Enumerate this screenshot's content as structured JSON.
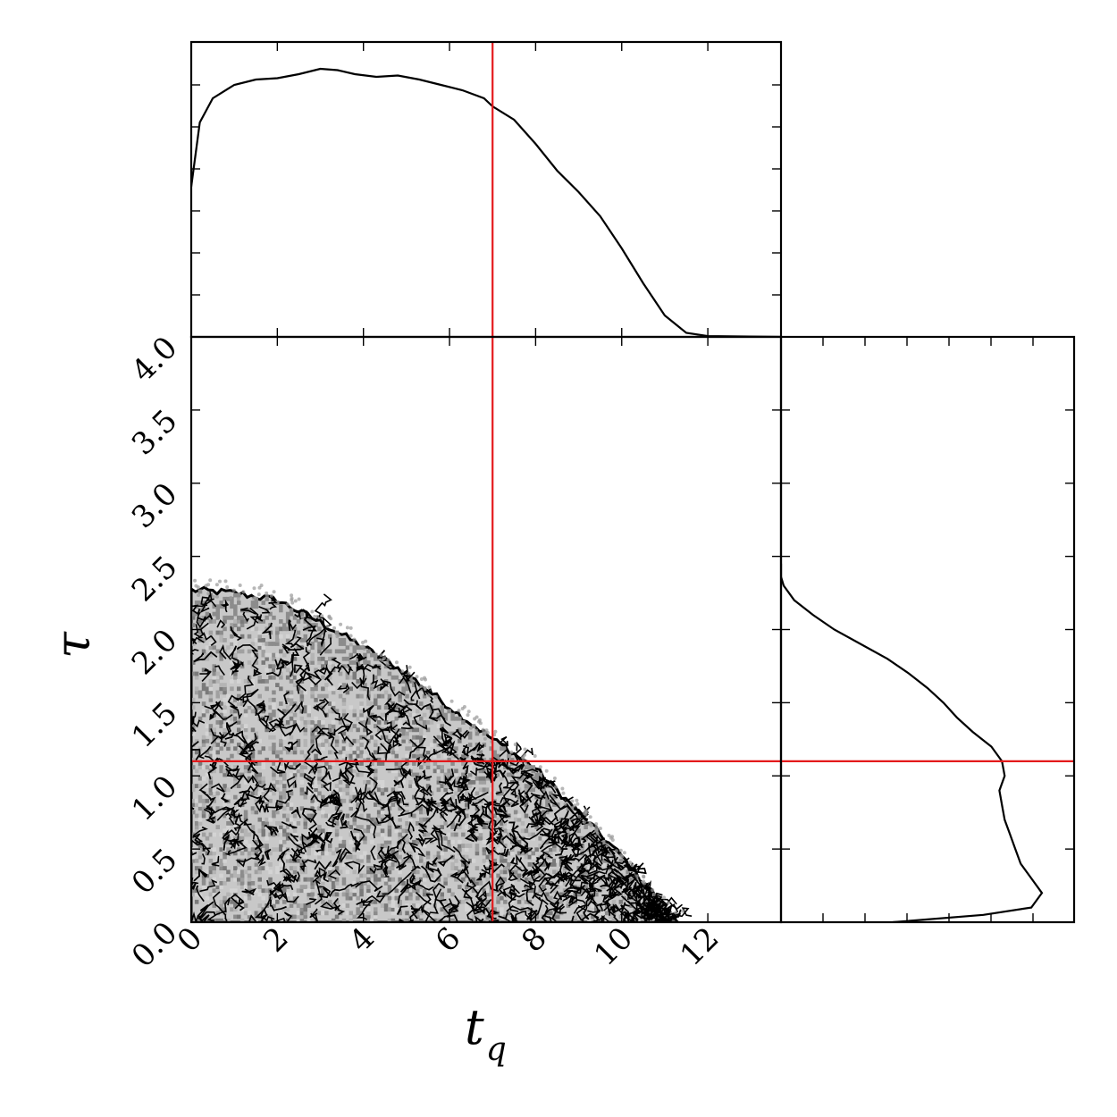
{
  "chart_data": {
    "type": "corner",
    "parameters": [
      {
        "key": "t_q",
        "label_main": "t",
        "label_sub": "q",
        "range": [
          0,
          13.7
        ],
        "ticks": [
          0,
          2,
          4,
          6,
          8,
          10,
          12
        ],
        "tick_labels": [
          "0",
          "2",
          "4",
          "6",
          "8",
          "10",
          "12"
        ]
      },
      {
        "key": "tau",
        "label_main": "τ",
        "label_sub": "",
        "range": [
          0,
          4.0
        ],
        "ticks": [
          0.0,
          0.5,
          1.0,
          1.5,
          2.0,
          2.5,
          3.0,
          3.5,
          4.0
        ],
        "tick_labels": [
          "0.0",
          "0.5",
          "1.0",
          "1.5",
          "2.0",
          "2.5",
          "3.0",
          "3.5",
          "4.0"
        ]
      }
    ],
    "truths": {
      "t_q": 7.0,
      "tau": 1.1
    },
    "marginal_t_q": {
      "x": [
        0,
        0.2,
        0.5,
        1.0,
        1.5,
        2.0,
        2.5,
        3.0,
        3.4,
        3.8,
        4.3,
        4.8,
        5.3,
        5.8,
        6.3,
        6.8,
        7.0,
        7.5,
        8.0,
        8.5,
        9.0,
        9.5,
        10.0,
        10.5,
        11.0,
        11.5,
        12.0,
        13.7
      ],
      "y": [
        0.56,
        0.8,
        0.89,
        0.94,
        0.96,
        0.965,
        0.98,
        1.0,
        0.995,
        0.98,
        0.97,
        0.975,
        0.96,
        0.94,
        0.92,
        0.89,
        0.86,
        0.81,
        0.72,
        0.62,
        0.54,
        0.45,
        0.33,
        0.2,
        0.08,
        0.015,
        0.003,
        0.0
      ]
    },
    "marginal_tau": {
      "y": [
        0.0,
        0.05,
        0.1,
        0.2,
        0.3,
        0.4,
        0.5,
        0.6,
        0.7,
        0.8,
        0.9,
        1.0,
        1.1,
        1.2,
        1.3,
        1.4,
        1.5,
        1.6,
        1.7,
        1.8,
        1.9,
        2.0,
        2.1,
        2.2,
        2.3,
        2.36,
        2.45
      ],
      "density": [
        0.42,
        0.76,
        0.94,
        0.98,
        0.94,
        0.9,
        0.88,
        0.86,
        0.84,
        0.83,
        0.82,
        0.84,
        0.83,
        0.79,
        0.72,
        0.66,
        0.61,
        0.55,
        0.48,
        0.4,
        0.3,
        0.2,
        0.12,
        0.05,
        0.01,
        0.0,
        0.0
      ]
    },
    "joint_envelope": {
      "t_q": [
        0,
        1,
        2,
        3,
        4,
        5,
        6,
        7,
        8,
        9,
        10,
        11.3
      ],
      "tau_max": [
        2.27,
        2.25,
        2.2,
        2.05,
        1.88,
        1.7,
        1.47,
        1.25,
        1.05,
        0.75,
        0.45,
        0.0
      ]
    }
  }
}
